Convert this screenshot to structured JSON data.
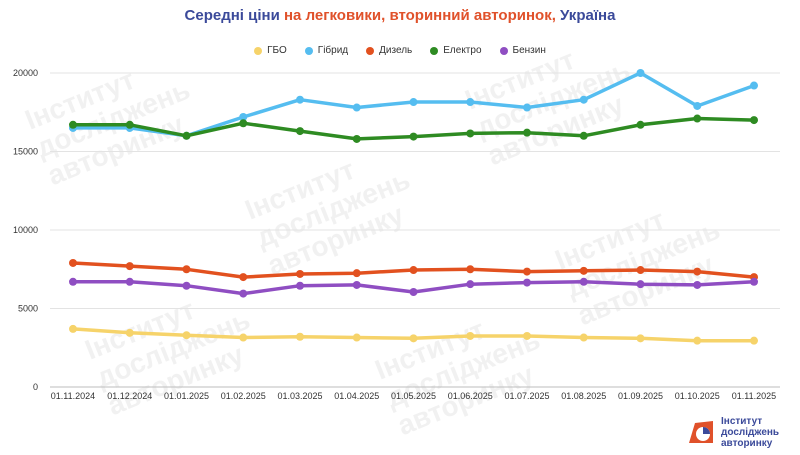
{
  "title": {
    "part1": "Середні ціни",
    "part2": "на легковики, вторинний авторинок,",
    "part3": "Україна"
  },
  "logo": {
    "line1": "Інститут",
    "line2": "досліджень",
    "line3": "авторинку",
    "accent_color": "#e0512a",
    "brand_color": "#3b4a9a"
  },
  "chart_data": {
    "type": "line",
    "categories": [
      "01.11.2024",
      "01.12.2024",
      "01.01.2025",
      "01.02.2025",
      "01.03.2025",
      "01.04.2025",
      "01.05.2025",
      "01.06.2025",
      "01.07.2025",
      "01.08.2025",
      "01.09.2025",
      "01.10.2025",
      "01.11.2025"
    ],
    "ylim": [
      0,
      20000
    ],
    "yticks": [
      0,
      5000,
      10000,
      15000,
      20000
    ],
    "grid": "horizontal",
    "legend_position": "top-center",
    "series": [
      {
        "name": "ГБО",
        "color": "#f6d36a",
        "values": [
          3700,
          3450,
          3300,
          3150,
          3200,
          3150,
          3100,
          3250,
          3250,
          3150,
          3100,
          2950,
          2950
        ]
      },
      {
        "name": "Гібрид",
        "color": "#55bdf0",
        "values": [
          16500,
          16500,
          16000,
          17200,
          18300,
          17800,
          18150,
          18150,
          17800,
          18300,
          20000,
          17900,
          19200
        ]
      },
      {
        "name": "Дизель",
        "color": "#e2511f",
        "values": [
          7900,
          7700,
          7500,
          7000,
          7200,
          7250,
          7450,
          7500,
          7350,
          7400,
          7450,
          7350,
          7000
        ]
      },
      {
        "name": "Електро",
        "color": "#2e8b22",
        "values": [
          16700,
          16700,
          16000,
          16800,
          16300,
          15800,
          15950,
          16150,
          16200,
          16000,
          16700,
          17100,
          17000
        ]
      },
      {
        "name": "Бензин",
        "color": "#8f4ec2",
        "values": [
          6700,
          6700,
          6450,
          5950,
          6450,
          6500,
          6050,
          6550,
          6650,
          6700,
          6550,
          6500,
          6700
        ]
      }
    ]
  },
  "watermark": {
    "line1": "Інститут",
    "line2": "досліджень",
    "line3": "авторинку"
  }
}
